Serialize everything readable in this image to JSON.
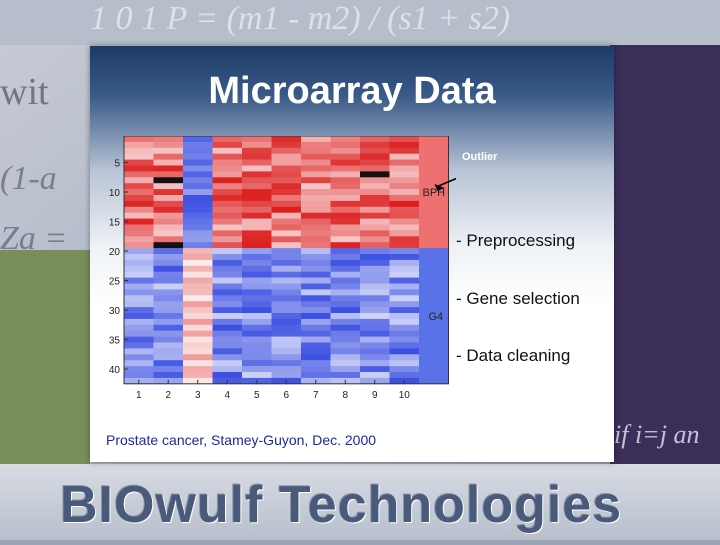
{
  "slide": {
    "title": "Microarray Data",
    "bullets": [
      "- Preprocessing",
      "- Gene selection",
      "- Data cleaning"
    ],
    "caption": "Prostate cancer, Stamey-Guyon, Dec. 2000"
  },
  "background": {
    "formula_top": "1 0 1 P = (m1 - m2) / (s1 + s2)",
    "formula_left_1": "wit",
    "formula_left_2": "(1-a",
    "formula_left_3": "Za =",
    "formula_right": "if i=j an",
    "banner": "BIOwulf Technologies"
  },
  "chart_data": {
    "type": "heatmap",
    "x_ticks": [
      "1",
      "2",
      "3",
      "4",
      "5",
      "6",
      "7",
      "8",
      "9",
      "10"
    ],
    "y_ticks": [
      "5",
      "10",
      "15",
      "20",
      "25",
      "30",
      "35",
      "40"
    ],
    "group_labels": [
      "BPH",
      "G4"
    ],
    "annotation": "Outlier",
    "groups": [
      {
        "name": "BPH",
        "columns": [
          1,
          2,
          3,
          4,
          5,
          6,
          7,
          8,
          9,
          10
        ],
        "rows": [
          1,
          18
        ]
      },
      {
        "name": "G4",
        "columns": [
          1,
          2,
          3,
          4,
          5,
          6,
          7,
          8,
          9,
          10
        ],
        "rows": [
          19,
          42
        ]
      }
    ],
    "colors": {
      "red": "#e23a3a",
      "blue": "#4a62e6",
      "outlier_column": "#ee6f6f",
      "dark_cell": "#111111"
    }
  }
}
